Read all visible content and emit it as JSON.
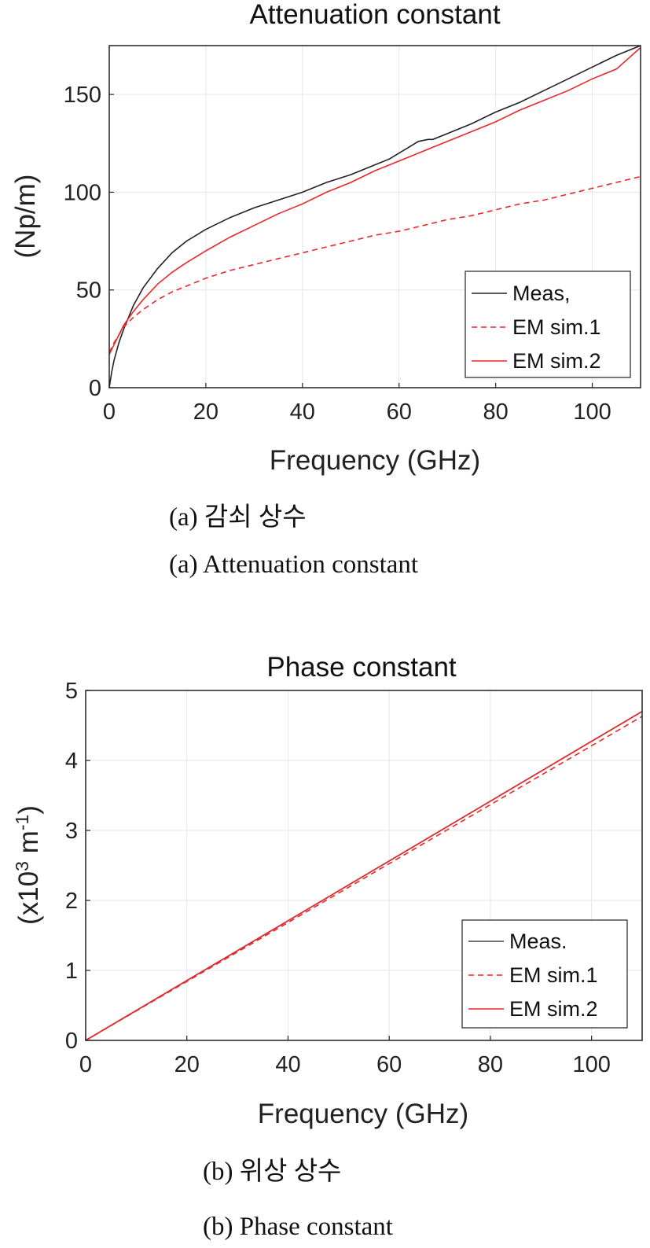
{
  "chart_data": [
    {
      "type": "line",
      "title": "Attenuation constant",
      "xlabel": "Frequency (GHz)",
      "ylabel": "(Np/m)",
      "xlim": [
        0,
        110
      ],
      "ylim": [
        0,
        175
      ],
      "xticks": [
        0,
        20,
        40,
        60,
        80,
        100
      ],
      "yticks": [
        0,
        50,
        100,
        150
      ],
      "grid": true,
      "legend_position": "bottom-right",
      "series": [
        {
          "name": "Meas,",
          "color": "#222222",
          "dash": "solid",
          "x": [
            0,
            0.5,
            1,
            2,
            3,
            5,
            7,
            10,
            13,
            16,
            20,
            25,
            30,
            35,
            40,
            45,
            50,
            55,
            58,
            60,
            62,
            64,
            66,
            67,
            70,
            75,
            80,
            85,
            90,
            95,
            100,
            105,
            110
          ],
          "y": [
            0,
            8,
            14,
            23,
            30,
            42,
            51,
            61,
            69,
            75,
            81,
            87,
            92,
            96,
            100,
            105,
            109,
            114,
            117,
            120,
            123,
            126,
            127,
            127,
            130,
            135,
            141,
            146,
            152,
            158,
            164,
            170,
            175
          ]
        },
        {
          "name": "EM sim.1",
          "color": "#e8282b",
          "dash": "dashed",
          "x": [
            0,
            1,
            2,
            3,
            5,
            7,
            10,
            13,
            16,
            20,
            25,
            30,
            35,
            40,
            45,
            50,
            55,
            60,
            65,
            70,
            75,
            80,
            85,
            90,
            95,
            100,
            105,
            110
          ],
          "y": [
            18,
            23,
            27,
            31,
            36,
            40,
            45,
            49,
            52,
            56,
            60,
            63,
            66,
            69,
            72,
            75,
            78,
            80,
            83,
            86,
            88,
            91,
            94,
            96,
            99,
            102,
            105,
            108
          ]
        },
        {
          "name": "EM sim.2",
          "color": "#e8282b",
          "dash": "solid",
          "x": [
            0,
            1,
            2,
            3,
            5,
            7,
            10,
            13,
            16,
            20,
            25,
            30,
            35,
            40,
            45,
            50,
            55,
            60,
            65,
            70,
            75,
            80,
            85,
            90,
            95,
            100,
            105,
            110
          ],
          "y": [
            17,
            22,
            27,
            32,
            39,
            45,
            53,
            59,
            64,
            70,
            77,
            83,
            89,
            94,
            100,
            105,
            111,
            116,
            121,
            126,
            131,
            136,
            142,
            147,
            152,
            158,
            163,
            174
          ]
        }
      ]
    },
    {
      "type": "line",
      "title": "Phase constant",
      "xlabel": "Frequency (GHz)",
      "ylabel_text": "(x10",
      "ylabel_sup1": "3",
      "ylabel_mid": " m",
      "ylabel_sup2": "-1",
      "ylabel_end": ")",
      "xlim": [
        0,
        110
      ],
      "ylim": [
        0,
        5
      ],
      "xticks": [
        0,
        20,
        40,
        60,
        80,
        100
      ],
      "yticks": [
        0,
        1,
        2,
        3,
        4,
        5
      ],
      "grid": true,
      "legend_position": "bottom-right",
      "series": [
        {
          "name": "Meas.",
          "color": "#444444",
          "dash": "solid",
          "x": [
            0,
            110
          ],
          "y": [
            0,
            4.7
          ]
        },
        {
          "name": "EM sim.1",
          "color": "#e8282b",
          "dash": "dashed",
          "x": [
            0,
            110
          ],
          "y": [
            0,
            4.63
          ]
        },
        {
          "name": "EM sim.2",
          "color": "#e8282b",
          "dash": "solid",
          "x": [
            0,
            110
          ],
          "y": [
            0,
            4.7
          ]
        }
      ]
    }
  ],
  "captions": {
    "a_korean": "(a) 감쇠 상수",
    "a_english": "(a) Attenuation constant",
    "b_korean": "(b) 위상 상수",
    "b_english": "(b) Phase constant"
  }
}
